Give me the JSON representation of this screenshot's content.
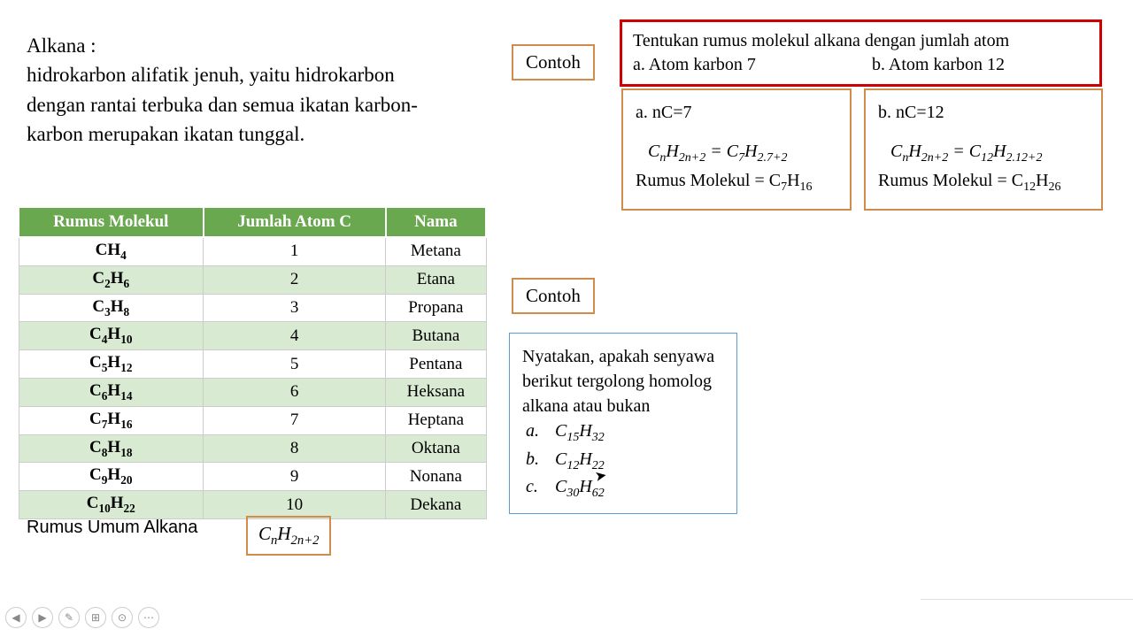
{
  "definition": {
    "title": "Alkana :",
    "text": "hidrokarbon alifatik jenuh, yaitu hidrokarbon dengan rantai terbuka dan semua ikatan karbon-karbon merupakan ikatan tunggal."
  },
  "contoh": {
    "label": "Contoh"
  },
  "question": {
    "line1": "Tentukan rumus molekul alkana dengan jumlah atom",
    "a": "a.   Atom karbon 7",
    "b": "b.     Atom karbon 12",
    "border_color": "#cc0000"
  },
  "answers": {
    "a": {
      "head": "a.   nC=7",
      "eq_html": "C<sub>n</sub>H<sub>2n+2</sub> = C<sub>7</sub>H<sub>2.7+2</sub>",
      "result_html": "Rumus Molekul = C<sub>7</sub>H<sub>16</sub>"
    },
    "b": {
      "head": "b. nC=12",
      "eq_html": "C<sub>n</sub>H<sub>2n+2</sub> = C<sub>12</sub>H<sub>2.12+2</sub>",
      "result_html": "Rumus Molekul = C<sub>12</sub>H<sub>26</sub>"
    },
    "border_color": "#d08c4a"
  },
  "table": {
    "header_bg": "#6aa84f",
    "header_fg": "#ffffff",
    "alt_row_bg": "#d9ead3",
    "columns": [
      "Rumus Molekul",
      "Jumlah Atom C",
      "Nama"
    ],
    "rows": [
      {
        "f": "CH<sub>4</sub>",
        "n": "1",
        "name": "Metana"
      },
      {
        "f": "C<sub>2</sub>H<sub>6</sub>",
        "n": "2",
        "name": "Etana"
      },
      {
        "f": "C<sub>3</sub>H<sub>8</sub>",
        "n": "3",
        "name": "Propana"
      },
      {
        "f": "C<sub>4</sub>H<sub>10</sub>",
        "n": "4",
        "name": "Butana"
      },
      {
        "f": "C<sub>5</sub>H<sub>12</sub>",
        "n": "5",
        "name": "Pentana"
      },
      {
        "f": "C<sub>6</sub>H<sub>14</sub>",
        "n": "6",
        "name": "Heksana"
      },
      {
        "f": "C<sub>7</sub>H<sub>16</sub>",
        "n": "7",
        "name": "Heptana"
      },
      {
        "f": "C<sub>8</sub>H<sub>18</sub>",
        "n": "8",
        "name": "Oktana"
      },
      {
        "f": "C<sub>9</sub>H<sub>20</sub>",
        "n": "9",
        "name": "Nonana"
      },
      {
        "f": "C<sub>10</sub>H<sub>22</sub>",
        "n": "10",
        "name": "Dekana"
      }
    ]
  },
  "rumus": {
    "label": "Rumus Umum Alkana",
    "formula_html": "C<sub>n</sub>H<sub>2n+2</sub>",
    "border_color": "#d08c4a"
  },
  "exercise": {
    "prompt": "Nyatakan, apakah senyawa berikut tergolong homolog alkana atau bukan",
    "items": [
      {
        "label": "a.",
        "f": "C<sub>15</sub>H<sub>32</sub>"
      },
      {
        "label": "b.",
        "f": "C<sub>12</sub>H<sub>22</sub>"
      },
      {
        "label": "c.",
        "f": "C<sub>30</sub>H<sub>62</sub>"
      }
    ],
    "border_color": "#5b9bd5"
  },
  "nav": {
    "icons": [
      "◀",
      "▶",
      "✎",
      "⊞",
      "⊙",
      "⋯"
    ]
  }
}
